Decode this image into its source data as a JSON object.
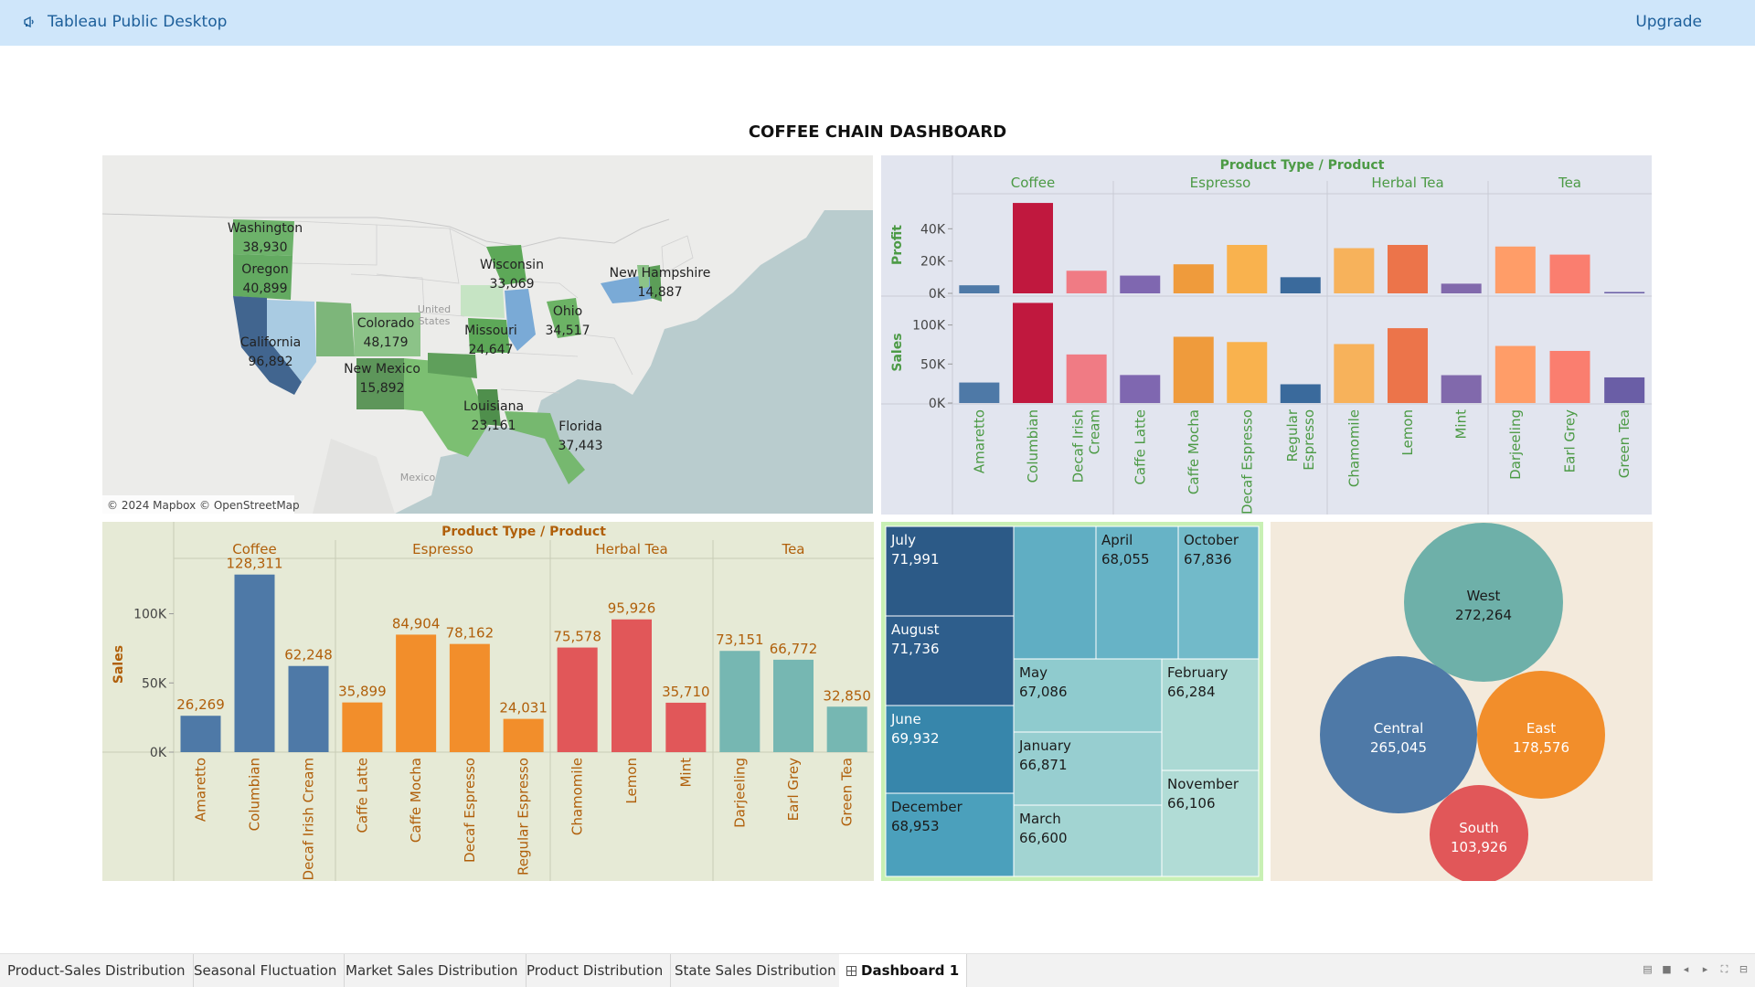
{
  "app": {
    "title": "Tableau Public Desktop",
    "upgrade_label": "Upgrade"
  },
  "dashboard": {
    "title": "COFFEE CHAIN DASHBOARD"
  },
  "colors": {
    "coffee": "#4e79a7",
    "espresso": "#f28e2b",
    "herbal_tea": "#e15759",
    "tea": "#76b7b2",
    "header_green": "#4c9a45",
    "header_orange": "#b05f0a"
  },
  "map": {
    "attribution": "© 2024 Mapbox © OpenStreetMap",
    "background_labels": [
      "United",
      "States",
      "Mexico"
    ],
    "states": [
      {
        "name": "Washington",
        "profit": "38,930"
      },
      {
        "name": "Oregon",
        "profit": "40,899"
      },
      {
        "name": "California",
        "profit": "96,892"
      },
      {
        "name": "Colorado",
        "profit": "48,179"
      },
      {
        "name": "New Mexico",
        "profit": "15,892"
      },
      {
        "name": "Wisconsin",
        "profit": "33,069"
      },
      {
        "name": "Missouri",
        "profit": "24,647"
      },
      {
        "name": "Ohio",
        "profit": "34,517"
      },
      {
        "name": "New Hampshire",
        "profit": "14,887"
      },
      {
        "name": "Louisiana",
        "profit": "23,161"
      },
      {
        "name": "Florida",
        "profit": "37,443"
      }
    ]
  },
  "chart_data": [
    {
      "type": "bar",
      "header": "Product Type / Product",
      "groups": [
        "Coffee",
        "Espresso",
        "Herbal Tea",
        "Tea"
      ],
      "categories": [
        "Amaretto",
        "Columbian",
        "Decaf Irish Cream",
        "Caffe Latte",
        "Caffe Mocha",
        "Decaf Espresso",
        "Regular Espresso",
        "Chamomile",
        "Lemon",
        "Mint",
        "Darjeeling",
        "Earl Grey",
        "Green Tea"
      ],
      "category_group": [
        0,
        0,
        0,
        1,
        1,
        1,
        1,
        2,
        2,
        2,
        3,
        3,
        3
      ],
      "colors": [
        "#4e79a7",
        "#c0183e",
        "#f07b84",
        "#7f67b0",
        "#ef9b3c",
        "#f9b24e",
        "#3a6a9c",
        "#f7b25b",
        "#ec744a",
        "#8169ac",
        "#ff9d68",
        "#fa7e6f",
        "#6a5ea6"
      ],
      "series": [
        {
          "name": "Profit",
          "values": [
            5000,
            56000,
            14000,
            11000,
            18000,
            30000,
            10000,
            28000,
            30000,
            6000,
            29000,
            24000,
            500
          ],
          "ylim": [
            0,
            60000
          ],
          "ticks": [
            "0K",
            "20K",
            "40K"
          ],
          "tick_values": [
            0,
            20000,
            40000
          ]
        },
        {
          "name": "Sales",
          "values": [
            26269,
            128311,
            62248,
            35899,
            84904,
            78162,
            24031,
            75578,
            95926,
            35710,
            73151,
            66772,
            32850
          ],
          "ylim": [
            0,
            130000
          ],
          "ticks": [
            "0K",
            "50K",
            "100K"
          ],
          "tick_values": [
            0,
            50000,
            100000
          ]
        }
      ]
    },
    {
      "type": "bar",
      "header": "Product Type / Product",
      "groups": [
        "Coffee",
        "Espresso",
        "Herbal Tea",
        "Tea"
      ],
      "categories": [
        "Amaretto",
        "Columbian",
        "Decaf Irish Cream",
        "Caffe Latte",
        "Caffe Mocha",
        "Decaf Espresso",
        "Regular Espresso",
        "Chamomile",
        "Lemon",
        "Mint",
        "Darjeeling",
        "Earl Grey",
        "Green Tea"
      ],
      "category_group": [
        0,
        0,
        0,
        1,
        1,
        1,
        1,
        2,
        2,
        2,
        3,
        3,
        3
      ],
      "values": [
        26269,
        128311,
        62248,
        35899,
        84904,
        78162,
        24031,
        75578,
        95926,
        35710,
        73151,
        66772,
        32850
      ],
      "labels": [
        "26,269",
        "128,311",
        "62,248",
        "35,899",
        "84,904",
        "78,162",
        "24,031",
        "75,578",
        "95,926",
        "35,710",
        "73,151",
        "66,772",
        "32,850"
      ],
      "ylabel": "Sales",
      "ylim": [
        0,
        140000
      ],
      "ticks": [
        "0K",
        "50K",
        "100K"
      ],
      "tick_values": [
        0,
        50000,
        100000
      ]
    },
    {
      "type": "heatmap",
      "subtype": "treemap",
      "cells": [
        {
          "month": "July",
          "value": "71,991",
          "color": "#2c5a87",
          "light": true
        },
        {
          "month": "August",
          "value": "71,736",
          "color": "#2e5e8c",
          "light": true
        },
        {
          "month": "June",
          "value": "69,932",
          "color": "#3786ab",
          "light": true
        },
        {
          "month": "December",
          "value": "68,953",
          "color": "#4ba0bc",
          "light": false
        },
        {
          "month": "",
          "value": "",
          "color": "#60aec3",
          "light": false
        },
        {
          "month": "April",
          "value": "68,055",
          "color": "#67b3c6",
          "light": false
        },
        {
          "month": "October",
          "value": "67,836",
          "color": "#72bac9",
          "light": false
        },
        {
          "month": "May",
          "value": "67,086",
          "color": "#8fcbce",
          "light": false
        },
        {
          "month": "January",
          "value": "66,871",
          "color": "#97ced0",
          "light": false
        },
        {
          "month": "March",
          "value": "66,600",
          "color": "#a2d4d2",
          "light": false
        },
        {
          "month": "February",
          "value": "66,284",
          "color": "#abd9d4",
          "light": false
        },
        {
          "month": "November",
          "value": "66,106",
          "color": "#b1dcd6",
          "light": false
        }
      ]
    },
    {
      "type": "scatter",
      "subtype": "packed-bubbles",
      "bubbles": [
        {
          "region": "West",
          "value": "272,264",
          "color": "#6eb0a9"
        },
        {
          "region": "Central",
          "value": "265,045",
          "color": "#4e79a7"
        },
        {
          "region": "East",
          "value": "178,576",
          "color": "#f28e2b"
        },
        {
          "region": "South",
          "value": "103,926",
          "color": "#e15759"
        }
      ]
    }
  ],
  "sheet_tabs": [
    {
      "label": "Product-Sales Distribution",
      "active": false
    },
    {
      "label": "Seasonal Fluctuation",
      "active": false
    },
    {
      "label": "Market Sales Distribution",
      "active": false
    },
    {
      "label": "Product Distribution",
      "active": false
    },
    {
      "label": "State Sales Distribution",
      "active": false
    },
    {
      "label": "Dashboard 1",
      "active": true
    }
  ]
}
